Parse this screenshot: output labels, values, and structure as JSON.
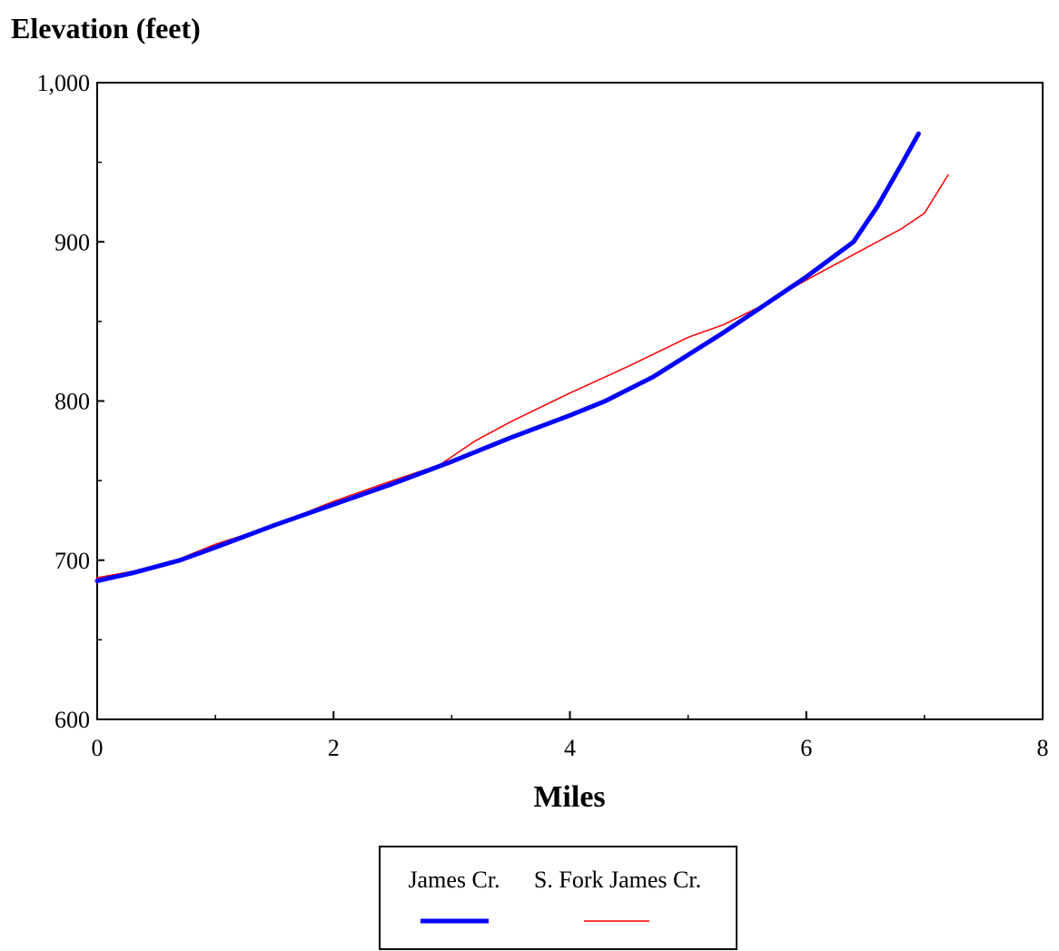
{
  "chart_data": {
    "type": "line",
    "title": "",
    "xlabel": "Miles",
    "ylabel": "Elevation (feet)",
    "xlim": [
      0,
      8
    ],
    "ylim": [
      600,
      1000
    ],
    "x_ticks": [
      0,
      2,
      4,
      6,
      8
    ],
    "x_tick_labels": [
      "0",
      "2",
      "4",
      "6",
      "8"
    ],
    "y_ticks": [
      600,
      700,
      800,
      900,
      1000
    ],
    "y_tick_labels": [
      "600",
      "700",
      "800",
      "900",
      "1,000"
    ],
    "grid": false,
    "legend_position": "bottom-center",
    "series": [
      {
        "name": "James Cr.",
        "color": "#0000ff",
        "points": [
          [
            0.0,
            687
          ],
          [
            0.3,
            692
          ],
          [
            0.7,
            700
          ],
          [
            1.0,
            708
          ],
          [
            1.5,
            722
          ],
          [
            2.0,
            735
          ],
          [
            2.5,
            748
          ],
          [
            3.0,
            762
          ],
          [
            3.5,
            777
          ],
          [
            4.0,
            791
          ],
          [
            4.3,
            800
          ],
          [
            4.7,
            815
          ],
          [
            5.0,
            829
          ],
          [
            5.3,
            843
          ],
          [
            5.6,
            858
          ],
          [
            6.0,
            878
          ],
          [
            6.4,
            900
          ],
          [
            6.6,
            922
          ],
          [
            6.8,
            948
          ],
          [
            6.95,
            968
          ]
        ]
      },
      {
        "name": "S. Fork James Cr.",
        "color": "#ff0000",
        "points": [
          [
            0.0,
            689
          ],
          [
            0.3,
            693
          ],
          [
            0.6,
            698
          ],
          [
            1.0,
            710
          ],
          [
            1.5,
            722
          ],
          [
            2.0,
            737
          ],
          [
            2.5,
            750
          ],
          [
            2.9,
            760
          ],
          [
            3.2,
            775
          ],
          [
            3.5,
            787
          ],
          [
            4.0,
            805
          ],
          [
            4.5,
            822
          ],
          [
            5.0,
            840
          ],
          [
            5.3,
            848
          ],
          [
            5.6,
            859
          ],
          [
            6.0,
            876
          ],
          [
            6.5,
            896
          ],
          [
            6.8,
            908
          ],
          [
            7.0,
            918
          ],
          [
            7.2,
            942
          ]
        ]
      }
    ]
  }
}
